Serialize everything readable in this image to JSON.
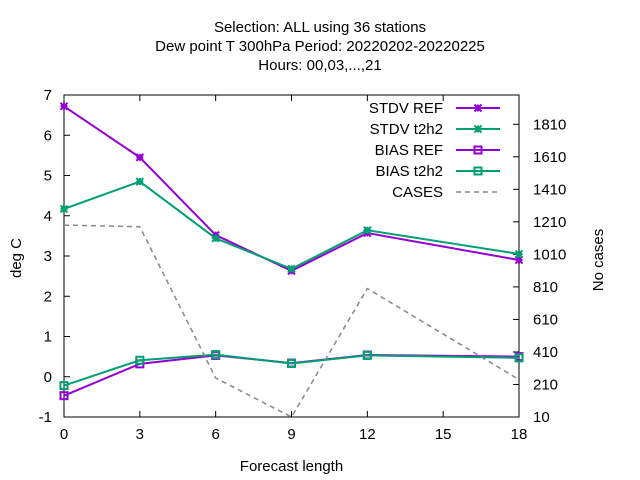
{
  "chart_data": {
    "type": "line",
    "title_lines": [
      "Selection: ALL using    36 stations",
      "Dew point T 300hPa   Period: 20220202-20220225",
      "Hours:  00,03,...,21"
    ],
    "xlabel": "Forecast length",
    "ylabel": "deg C",
    "y2label": "No cases",
    "x": [
      0,
      3,
      6,
      9,
      12,
      15,
      18
    ],
    "x_ticks": [
      "0",
      "3",
      "6",
      "9",
      "12",
      "15",
      "18"
    ],
    "y_ticks": [
      "-1",
      "0",
      "1",
      "2",
      "3",
      "4",
      "5",
      "6",
      "7"
    ],
    "y2_ticks": [
      "10",
      "210",
      "410",
      "610",
      "810",
      "1010",
      "1210",
      "1410",
      "1610",
      "1810"
    ],
    "xlim": [
      0,
      18
    ],
    "ylim": [
      -1,
      7
    ],
    "y2lim": [
      10,
      1990
    ],
    "legend_position": "top-right",
    "grid": false,
    "series": [
      {
        "name": "STDV REF",
        "axis": "y",
        "marker": "x-star",
        "dashed": false,
        "color": "#9400d3",
        "x": [
          0,
          3,
          6,
          9,
          12,
          18
        ],
        "values": [
          6.72,
          5.45,
          3.52,
          2.63,
          3.57,
          2.9
        ]
      },
      {
        "name": "STDV t2h2",
        "axis": "y",
        "marker": "x-star",
        "dashed": false,
        "color": "#009e73",
        "x": [
          0,
          3,
          6,
          9,
          12,
          18
        ],
        "values": [
          4.17,
          4.85,
          3.44,
          2.68,
          3.64,
          3.05
        ]
      },
      {
        "name": "BIAS REF",
        "axis": "y",
        "marker": "square",
        "dashed": false,
        "color": "#9400d3",
        "x": [
          0,
          3,
          6,
          9,
          12,
          18
        ],
        "values": [
          -0.47,
          0.32,
          0.53,
          0.34,
          0.54,
          0.5
        ]
      },
      {
        "name": "BIAS t2h2",
        "axis": "y",
        "marker": "square",
        "dashed": false,
        "color": "#009e73",
        "x": [
          0,
          3,
          6,
          9,
          12,
          18
        ],
        "values": [
          -0.22,
          0.41,
          0.55,
          0.33,
          0.53,
          0.47
        ]
      },
      {
        "name": "CASES",
        "axis": "y2",
        "marker": "none",
        "dashed": true,
        "color": "#888888",
        "x": [
          0,
          3,
          6,
          9,
          12,
          18
        ],
        "values": [
          1190,
          1180,
          250,
          10,
          800,
          240
        ]
      }
    ]
  }
}
